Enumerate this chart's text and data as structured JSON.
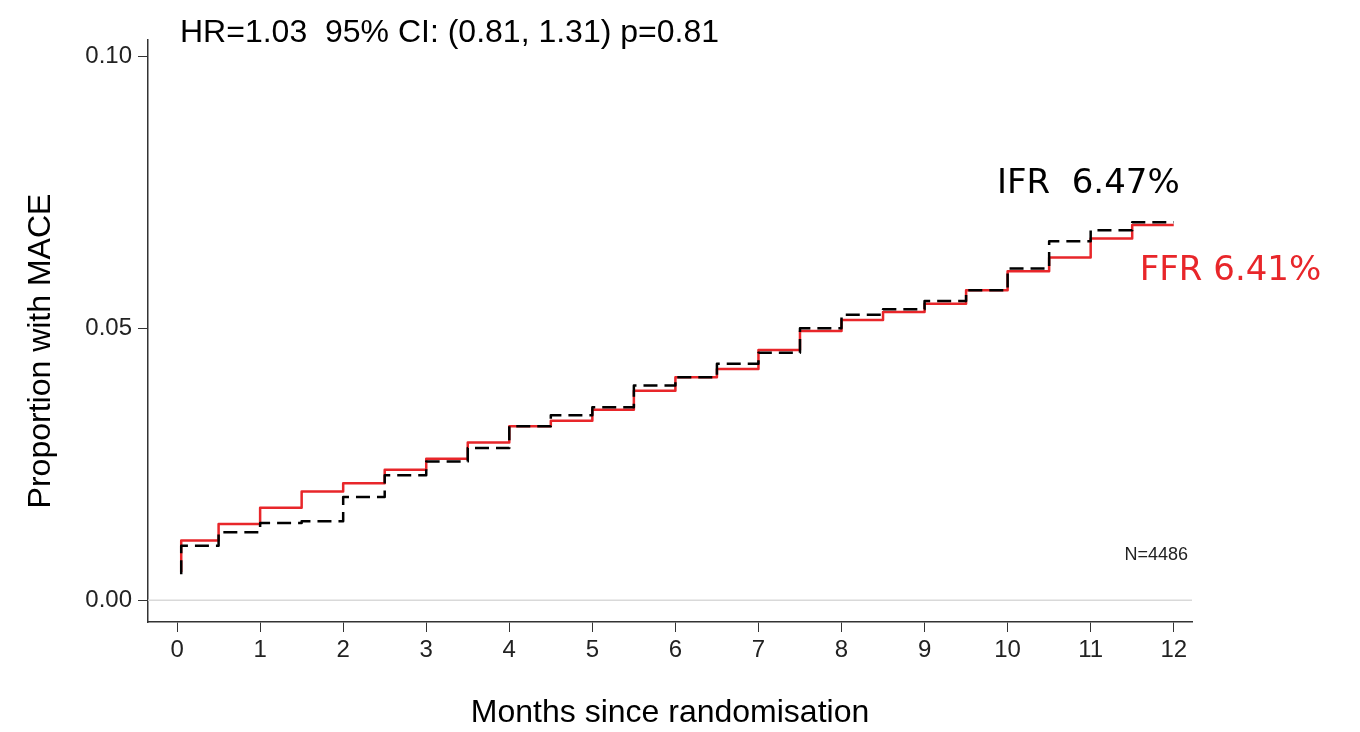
{
  "chart_data": {
    "type": "step",
    "title": "HR=1.03  95% CI: (0.81, 1.31) p=0.81",
    "xlabel": "Months since randomisation",
    "ylabel": "Proportion with MACE",
    "x": [
      0.05,
      0.5,
      1,
      1.5,
      2,
      2.5,
      3,
      3.5,
      4,
      4.5,
      5,
      5.5,
      6,
      6.5,
      7,
      7.5,
      8,
      8.5,
      9,
      9.5,
      10,
      10.5,
      11,
      11.5,
      12
    ],
    "series": [
      {
        "name": "IFR  6.47%",
        "color": "#000000",
        "line_style": "dashed",
        "values": [
          0.0048,
          0.01,
          0.0125,
          0.0142,
          0.0145,
          0.019,
          0.023,
          0.0255,
          0.028,
          0.032,
          0.034,
          0.0355,
          0.0395,
          0.041,
          0.0435,
          0.0455,
          0.05,
          0.0525,
          0.0535,
          0.055,
          0.057,
          0.061,
          0.066,
          0.068,
          0.0695
        ]
      },
      {
        "name": "FFR 6.41%",
        "color": "#e8262a",
        "line_style": "solid",
        "values": [
          0.0052,
          0.011,
          0.014,
          0.017,
          0.02,
          0.0215,
          0.024,
          0.026,
          0.029,
          0.032,
          0.033,
          0.035,
          0.0385,
          0.041,
          0.0425,
          0.046,
          0.0495,
          0.0515,
          0.053,
          0.0545,
          0.057,
          0.0605,
          0.063,
          0.0665,
          0.069
        ]
      }
    ],
    "xlim": [
      -0.35,
      12.22
    ],
    "xticks": [
      0,
      1,
      2,
      3,
      4,
      5,
      6,
      7,
      8,
      9,
      10,
      11,
      12
    ],
    "ylim": [
      -0.004,
      0.103
    ],
    "yticks": [
      {
        "value": 0,
        "label": "0.00"
      },
      {
        "value": 0.05,
        "label": "0.05"
      },
      {
        "value": 0.1,
        "label": "0.10"
      }
    ],
    "ref_lines": [
      {
        "axis": "y",
        "value": 0,
        "color": "#d9d9d9"
      }
    ],
    "annotations": [
      "N=4486"
    ],
    "grid": false,
    "legend": false,
    "marker": "none"
  }
}
